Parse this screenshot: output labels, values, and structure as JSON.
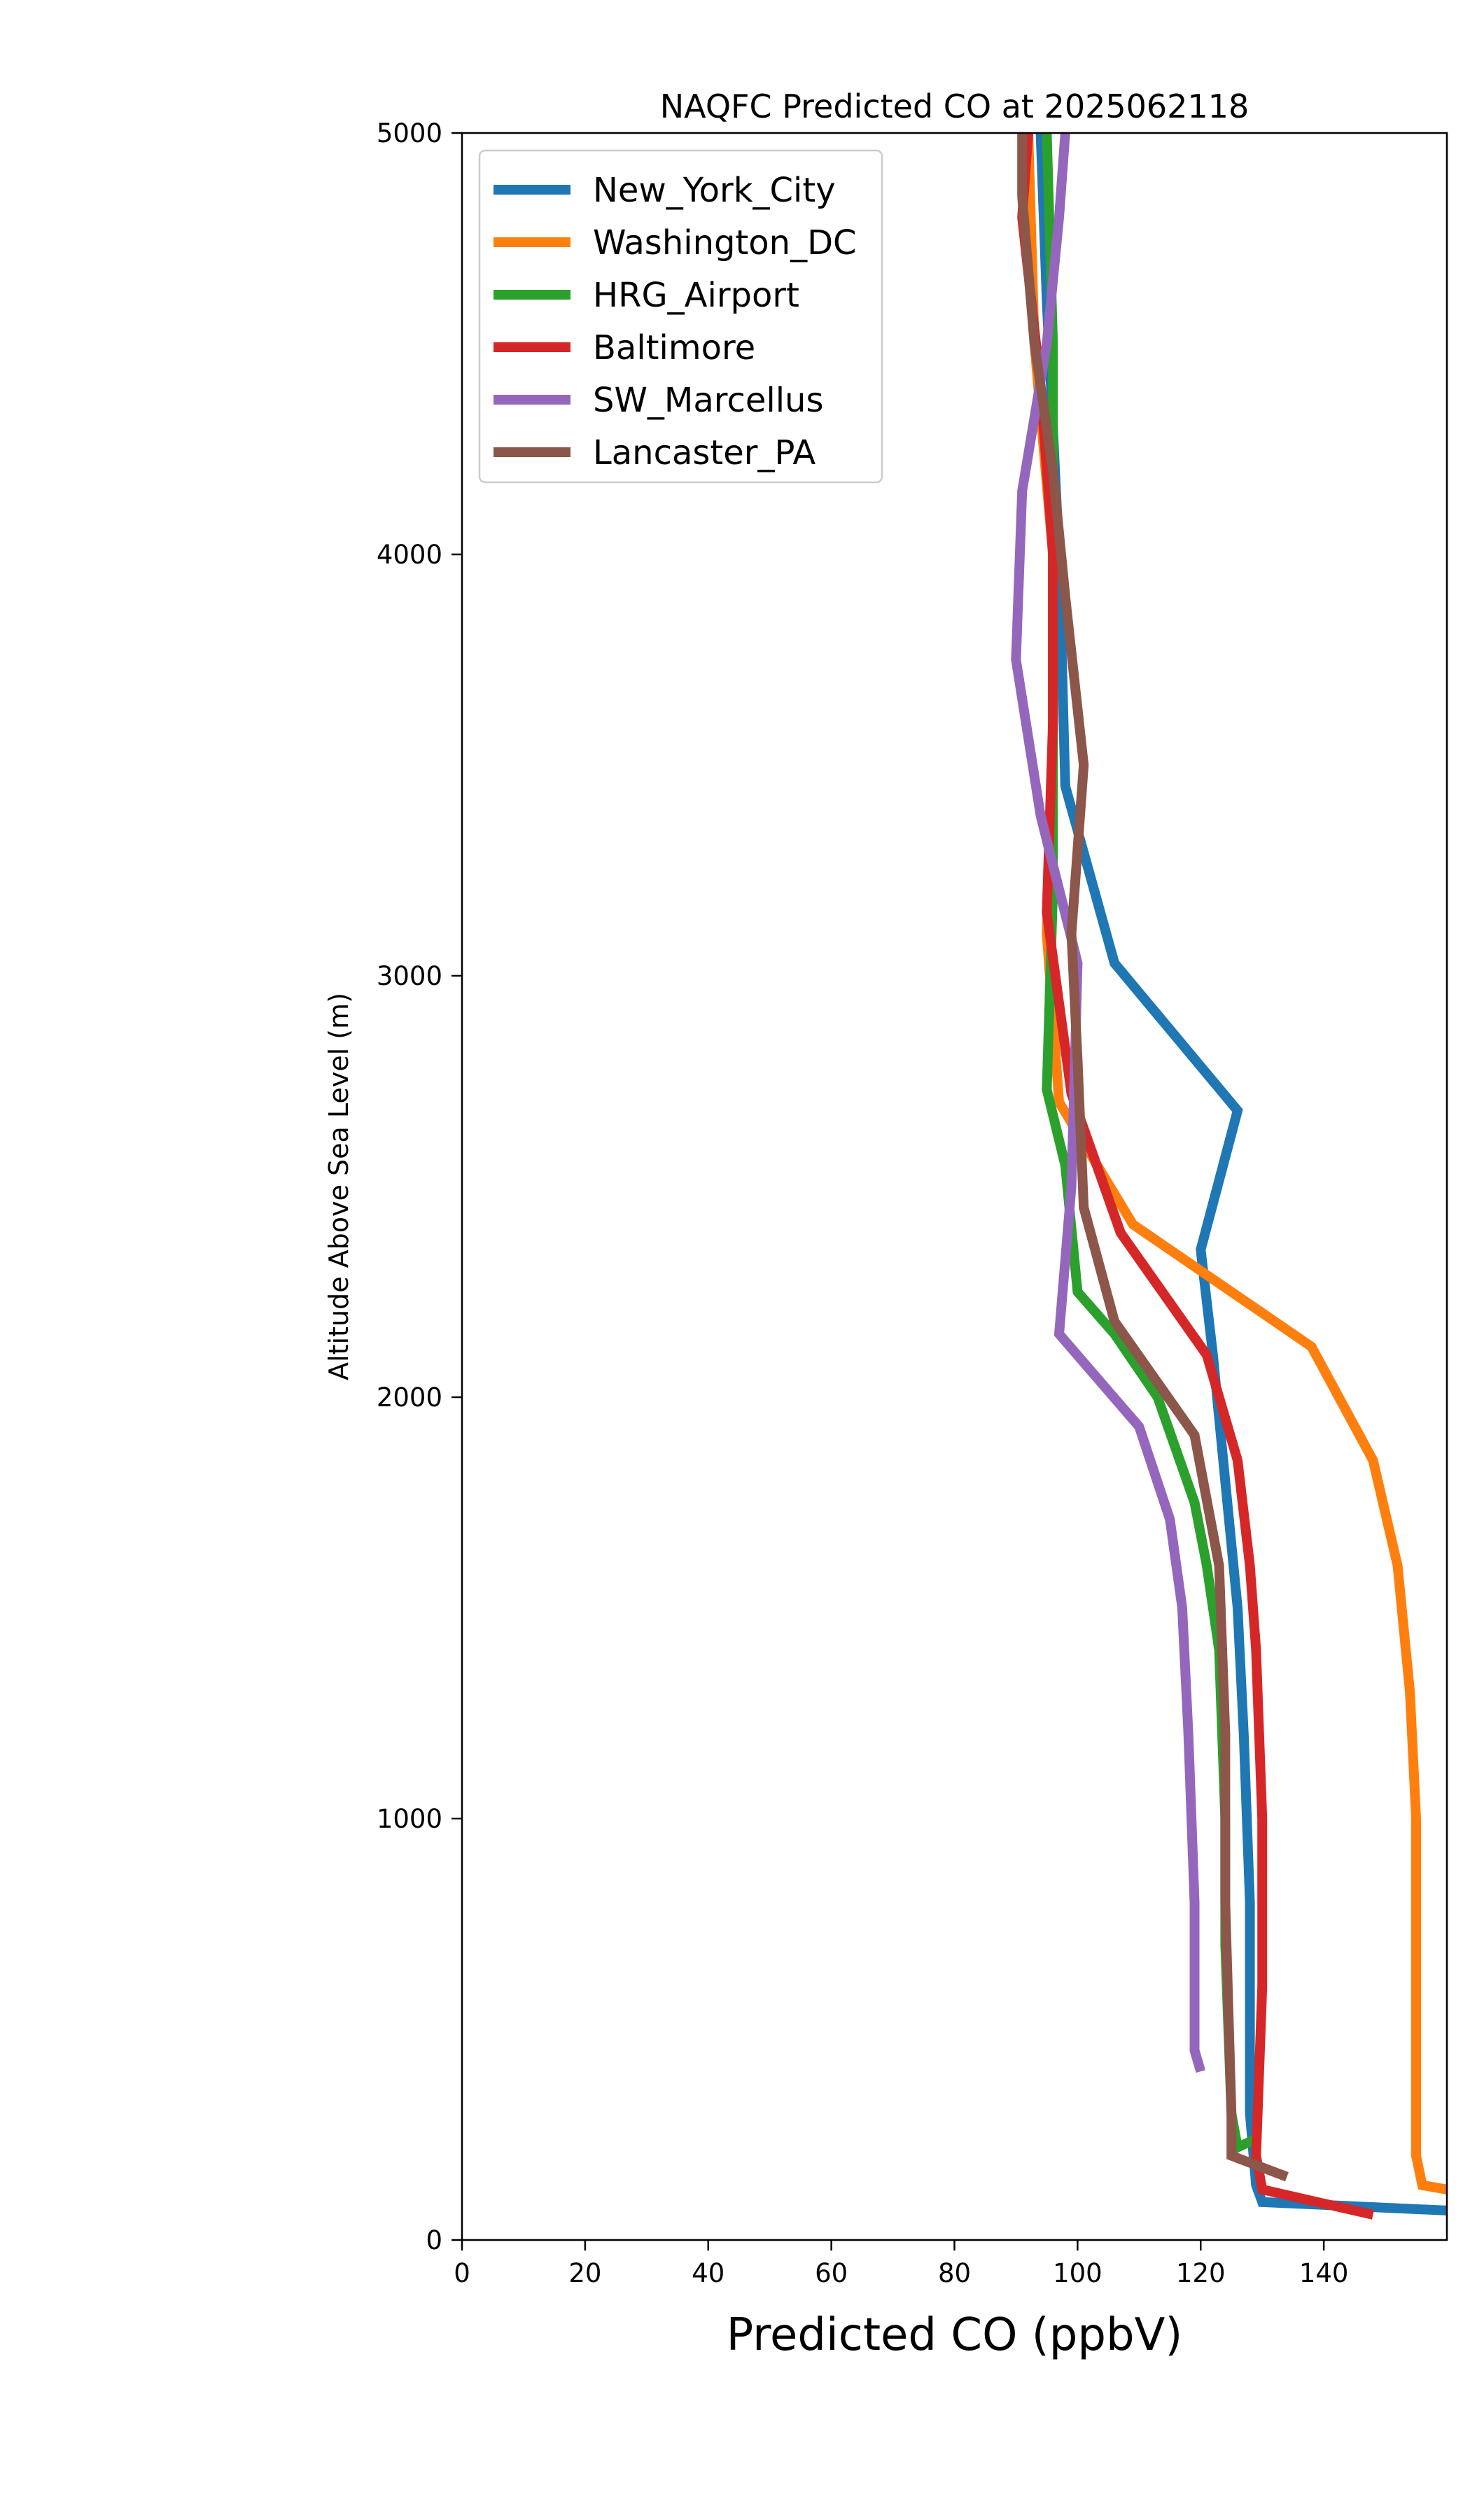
{
  "chart_data": {
    "type": "line",
    "title": "NAQFC Predicted CO at 2025062118",
    "xlabel": "Predicted CO (ppbV)",
    "ylabel": "Altitude Above Sea Level (m)",
    "xlim": [
      0,
      160
    ],
    "ylim": [
      0,
      5000
    ],
    "xticks": [
      0,
      20,
      40,
      60,
      80,
      100,
      120,
      140
    ],
    "yticks": [
      0,
      1000,
      2000,
      3000,
      4000,
      5000
    ],
    "grid": false,
    "legend_position": "top-left",
    "series": [
      {
        "name": "New_York_City",
        "color": "#1f77b4",
        "points": [
          [
            160,
            70
          ],
          [
            130,
            90
          ],
          [
            129,
            130
          ],
          [
            128,
            300
          ],
          [
            128,
            800
          ],
          [
            127,
            1200
          ],
          [
            126,
            1500
          ],
          [
            124,
            1800
          ],
          [
            122,
            2100
          ],
          [
            120,
            2350
          ],
          [
            126,
            2680
          ],
          [
            106,
            3030
          ],
          [
            98,
            3450
          ],
          [
            97,
            4000
          ],
          [
            95,
            4600
          ],
          [
            94,
            5000
          ]
        ]
      },
      {
        "name": "Washington_DC",
        "color": "#ff7f0e",
        "points": [
          [
            160,
            120
          ],
          [
            156,
            130
          ],
          [
            155,
            200
          ],
          [
            155,
            600
          ],
          [
            155,
            1000
          ],
          [
            154,
            1300
          ],
          [
            152,
            1600
          ],
          [
            148,
            1850
          ],
          [
            138,
            2120
          ],
          [
            109,
            2410
          ],
          [
            97,
            2700
          ],
          [
            95,
            3100
          ],
          [
            96,
            3500
          ],
          [
            96,
            4000
          ],
          [
            93,
            4500
          ],
          [
            92,
            5000
          ]
        ]
      },
      {
        "name": "HRG_Airport",
        "color": "#2ca02c",
        "points": [
          [
            129,
            240
          ],
          [
            126,
            220
          ],
          [
            125,
            300
          ],
          [
            124,
            700
          ],
          [
            124,
            1000
          ],
          [
            123,
            1400
          ],
          [
            121,
            1600
          ],
          [
            119,
            1750
          ],
          [
            113,
            2000
          ],
          [
            106,
            2150
          ],
          [
            100,
            2250
          ],
          [
            98,
            2550
          ],
          [
            95,
            2730
          ],
          [
            96,
            3200
          ],
          [
            96,
            3600
          ],
          [
            96,
            4000
          ],
          [
            96,
            4500
          ],
          [
            95,
            5000
          ]
        ]
      },
      {
        "name": "Baltimore",
        "color": "#d62728",
        "points": [
          [
            148,
            60
          ],
          [
            130,
            120
          ],
          [
            129,
            200
          ],
          [
            130,
            600
          ],
          [
            130,
            1000
          ],
          [
            129,
            1400
          ],
          [
            128,
            1600
          ],
          [
            126,
            1850
          ],
          [
            121,
            2100
          ],
          [
            107,
            2390
          ],
          [
            99,
            2720
          ],
          [
            95,
            3150
          ],
          [
            96,
            3600
          ],
          [
            96,
            4000
          ],
          [
            94,
            4400
          ],
          [
            91,
            4800
          ],
          [
            92,
            5000
          ]
        ]
      },
      {
        "name": "SW_Marcellus",
        "color": "#9467bd",
        "points": [
          [
            120,
            400
          ],
          [
            119,
            450
          ],
          [
            119,
            800
          ],
          [
            118,
            1200
          ],
          [
            117,
            1500
          ],
          [
            115,
            1710
          ],
          [
            110,
            1930
          ],
          [
            97,
            2150
          ],
          [
            99,
            2500
          ],
          [
            100,
            3030
          ],
          [
            94,
            3380
          ],
          [
            90,
            3750
          ],
          [
            91,
            4150
          ],
          [
            95,
            4500
          ],
          [
            97,
            4800
          ],
          [
            98,
            5000
          ]
        ]
      },
      {
        "name": "Lancaster_PA",
        "color": "#8c564b",
        "points": [
          [
            134,
            150
          ],
          [
            125,
            200
          ],
          [
            125,
            300
          ],
          [
            124,
            800
          ],
          [
            124,
            1200
          ],
          [
            123,
            1600
          ],
          [
            119,
            1910
          ],
          [
            106,
            2180
          ],
          [
            101,
            2450
          ],
          [
            100,
            2800
          ],
          [
            99,
            3100
          ],
          [
            101,
            3500
          ],
          [
            98,
            3900
          ],
          [
            96,
            4200
          ],
          [
            93,
            4500
          ],
          [
            91,
            4850
          ],
          [
            91,
            5000
          ]
        ]
      }
    ]
  }
}
